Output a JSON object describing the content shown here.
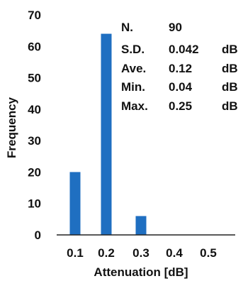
{
  "chart_data": {
    "type": "bar",
    "categories": [
      "0.1",
      "0.2",
      "0.3",
      "0.4",
      "0.5"
    ],
    "values": [
      20,
      64,
      6,
      0,
      0
    ],
    "xlabel": "Attenuation  [dB]",
    "ylabel": "Frequency",
    "ylim": [
      0,
      70
    ],
    "yticks": [
      "0",
      "10",
      "20",
      "30",
      "40",
      "50",
      "60",
      "70"
    ],
    "grid": false,
    "bar_color": "#1f6fc1",
    "stats": [
      {
        "label": "N.",
        "value": "90",
        "unit": ""
      },
      {
        "label": "S.D.",
        "value": "0.042",
        "unit": "dB"
      },
      {
        "label": "Ave.",
        "value": "0.12",
        "unit": "dB"
      },
      {
        "label": "Min.",
        "value": "0.04",
        "unit": "dB"
      },
      {
        "label": "Max.",
        "value": "0.25",
        "unit": "dB"
      }
    ]
  }
}
